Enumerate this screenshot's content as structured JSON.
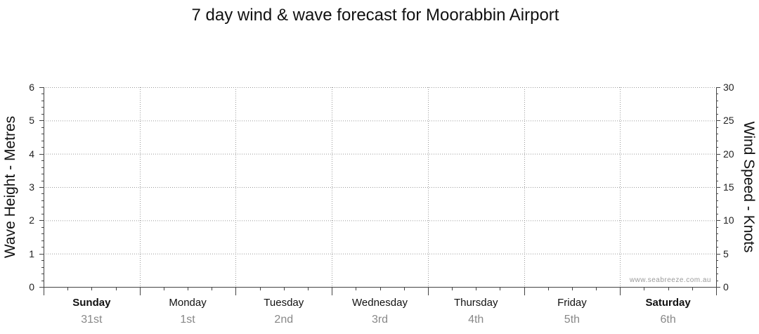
{
  "chart_data": {
    "type": "line",
    "title": "7 day wind & wave forecast for Moorabbin Airport",
    "ylabel_left": "Wave Height - Metres",
    "ylabel_right": "Wind Speed - Knots",
    "ylim_left": [
      0,
      6
    ],
    "ylim_right": [
      0,
      30
    ],
    "left_ticks": [
      "0",
      "1",
      "2",
      "3",
      "4",
      "5",
      "6"
    ],
    "right_ticks": [
      "0",
      "5",
      "10",
      "15",
      "20",
      "25",
      "30"
    ],
    "grid": true,
    "days": [
      {
        "name": "Sunday",
        "date": "31st",
        "bold": true
      },
      {
        "name": "Monday",
        "date": "1st",
        "bold": false
      },
      {
        "name": "Tuesday",
        "date": "2nd",
        "bold": false
      },
      {
        "name": "Wednesday",
        "date": "3rd",
        "bold": false
      },
      {
        "name": "Thursday",
        "date": "4th",
        "bold": false
      },
      {
        "name": "Friday",
        "date": "5th",
        "bold": false
      },
      {
        "name": "Saturday",
        "date": "6th",
        "bold": true
      }
    ],
    "series": [],
    "watermark": "www.seabreeze.com.au"
  }
}
